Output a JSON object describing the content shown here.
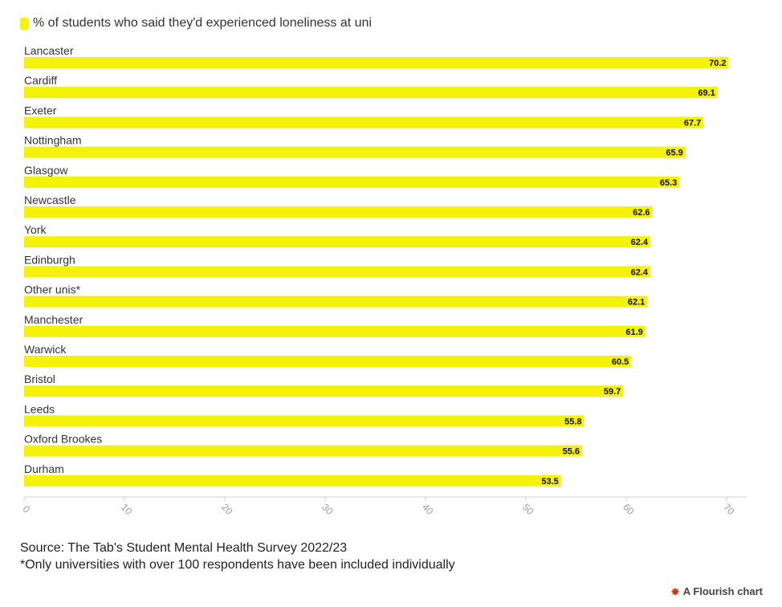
{
  "colors": {
    "bar": "#f4f10a",
    "axis": "#cfcfcf",
    "tick_text": "#9a9a9a",
    "category_text": "#333333",
    "value_text": "#111111",
    "credit_icon": "#e03010"
  },
  "legend": {
    "label": "% of students who said they'd experienced loneliness at uni"
  },
  "chart_data": {
    "type": "bar",
    "orientation": "horizontal",
    "categories": [
      "Lancaster",
      "Cardiff",
      "Exeter",
      "Nottingham",
      "Glasgow",
      "Newcastle",
      "York",
      "Edinburgh",
      "Other unis*",
      "Manchester",
      "Warwick",
      "Bristol",
      "Leeds",
      "Oxford Brookes",
      "Durham"
    ],
    "series": [
      {
        "name": "% of students who said they'd experienced loneliness at uni",
        "values": [
          70.2,
          69.1,
          67.7,
          65.9,
          65.3,
          62.6,
          62.4,
          62.4,
          62.1,
          61.9,
          60.5,
          59.7,
          55.8,
          55.6,
          53.5
        ]
      }
    ],
    "value_labels": [
      "70.2",
      "69.1",
      "67.7",
      "65.9",
      "65.3",
      "62.6",
      "62.4",
      "62.4",
      "62.1",
      "61.9",
      "60.5",
      "59.7",
      "55.8",
      "55.6",
      "53.5"
    ],
    "xlim": [
      0,
      72
    ],
    "xticks": [
      0,
      10,
      20,
      30,
      40,
      50,
      60,
      70
    ],
    "xlabel": "",
    "ylabel": "",
    "grid": false
  },
  "footer": {
    "source": "Source: The Tab's Student Mental Health Survey 2022/23",
    "note": "*Only universities with over 100 respondents have been included individually"
  },
  "credit": {
    "label": "A Flourish chart",
    "icon": "flourish-burst-icon"
  }
}
